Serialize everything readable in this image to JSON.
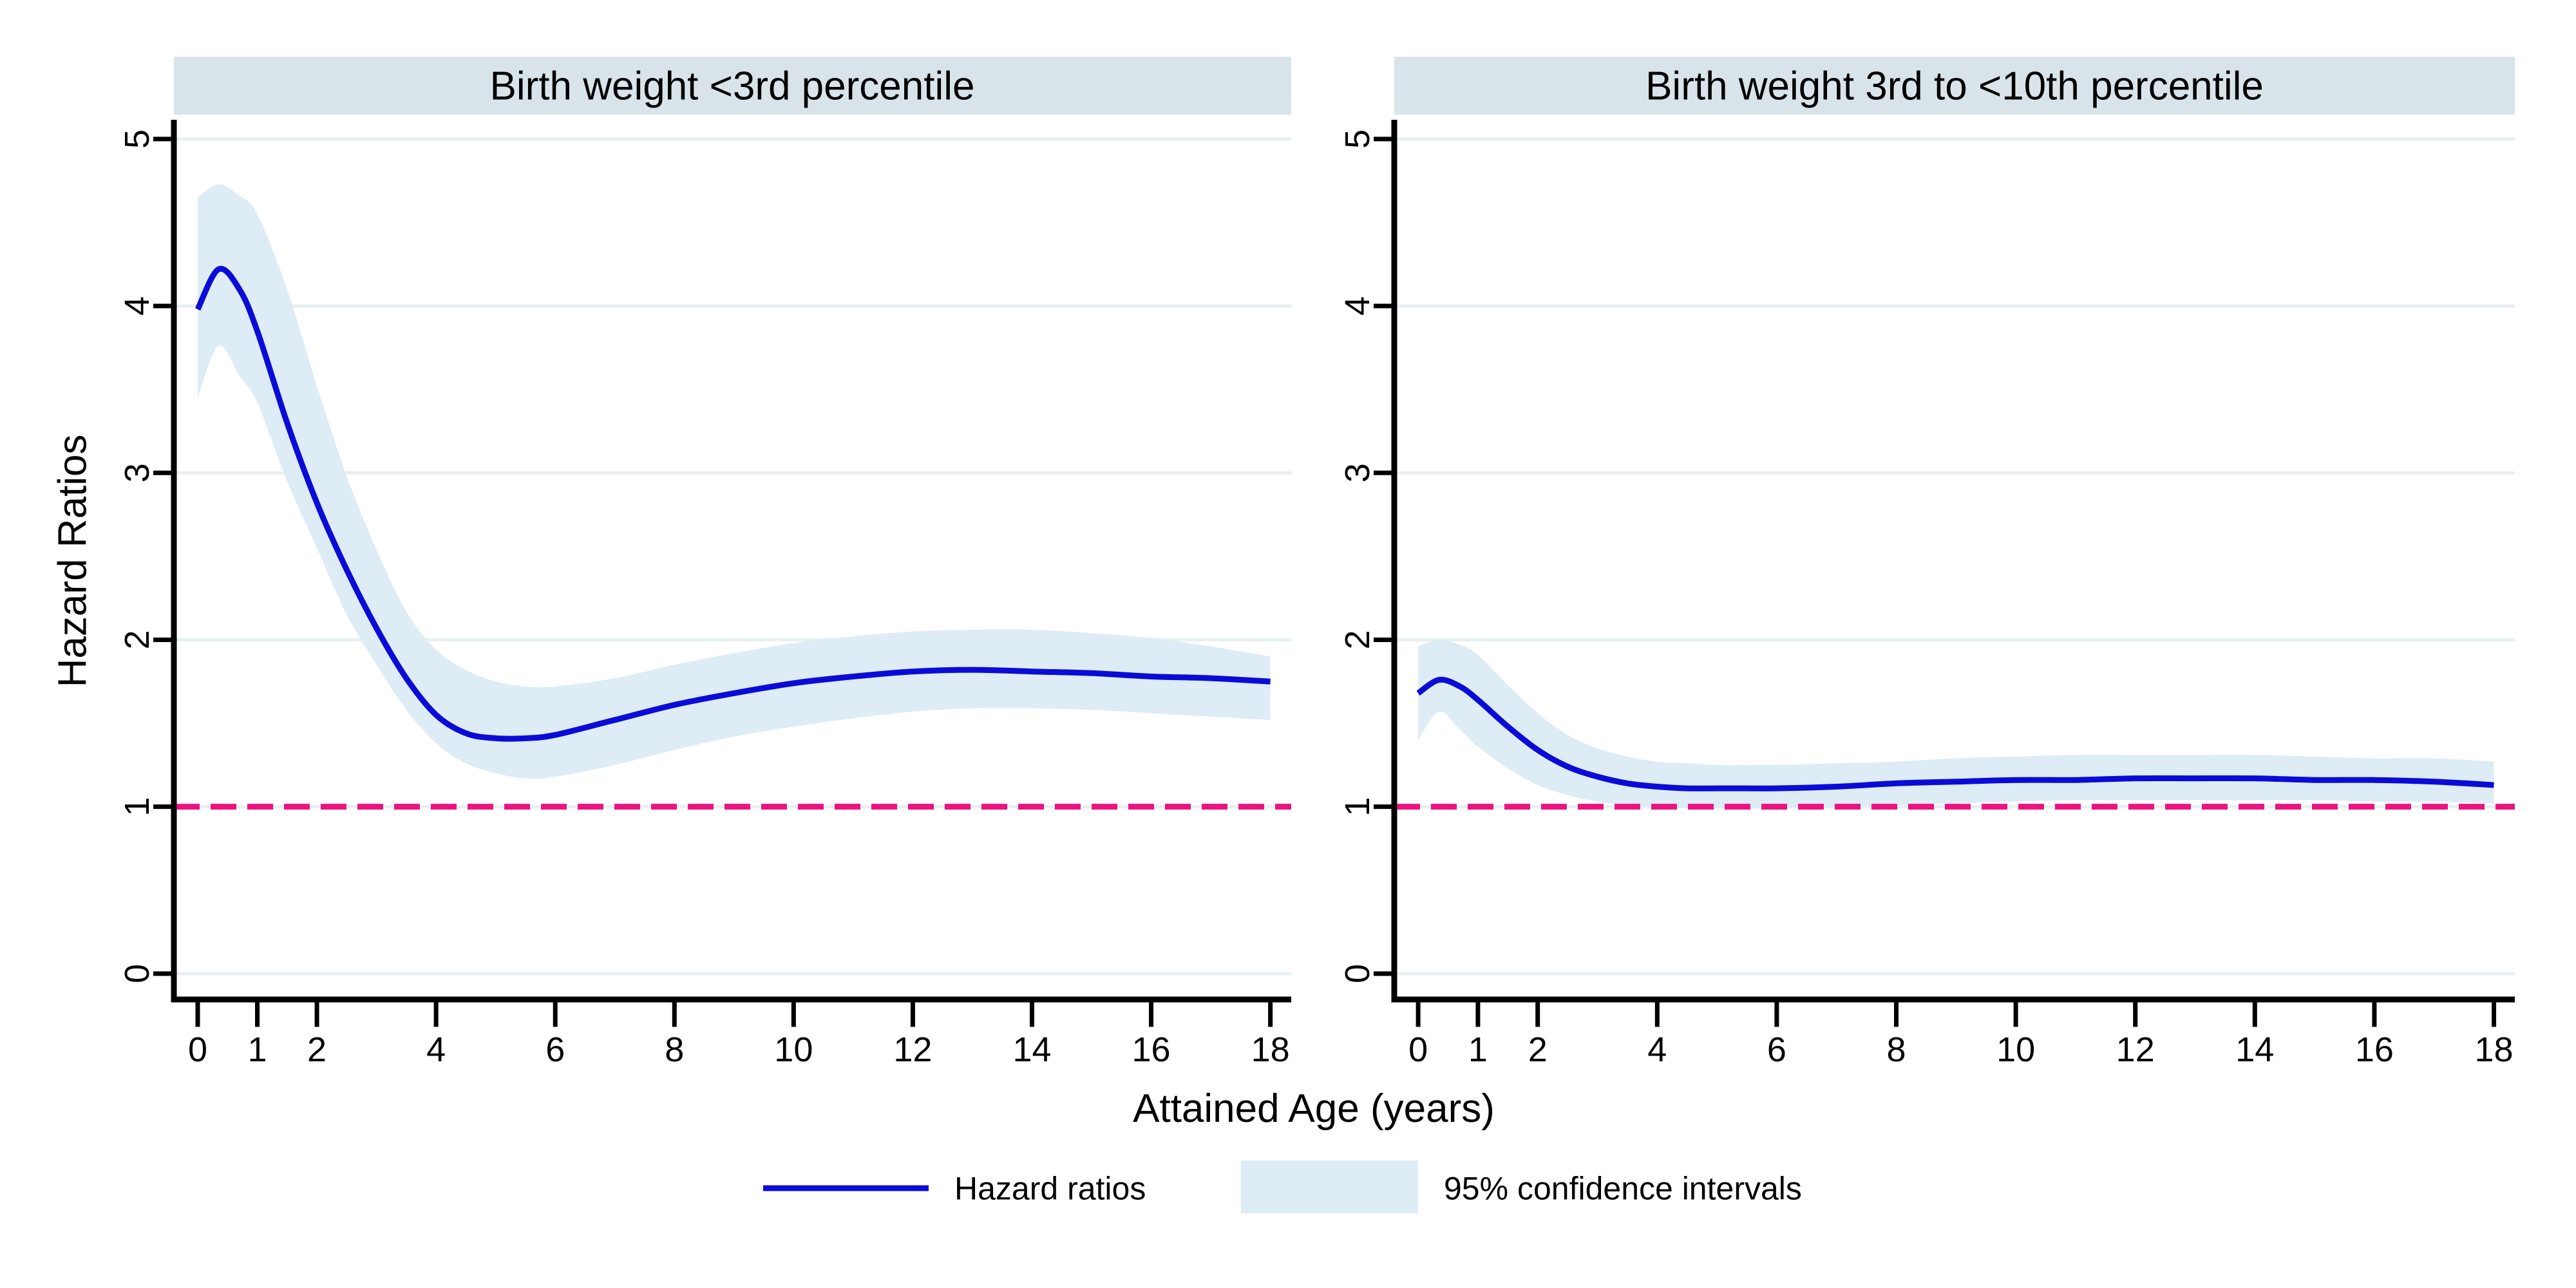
{
  "figure": {
    "background": "#ffffff"
  },
  "colors": {
    "curve": "#0b0bd8",
    "ci_band": "#ddecf5",
    "reference_line": "#ec1380",
    "panel_title_bar": "#d9e4ea",
    "gridline": "#e9f0f2",
    "axis": "#000000",
    "text": "#000000"
  },
  "chart_data": {
    "type": "line",
    "title": "",
    "xlabel": "Attained Age (years)",
    "ylabel": "Hazard Ratios",
    "xticks": [
      0,
      1,
      2,
      4,
      6,
      8,
      10,
      12,
      14,
      16,
      18
    ],
    "yticks": [
      0,
      1,
      2,
      3,
      4,
      5
    ],
    "xlim": [
      -0.4,
      18.35
    ],
    "ylim": [
      -0.155,
      5.1
    ],
    "grid": true,
    "reference_line": {
      "y": 1,
      "style": "dashed",
      "color": "#ec1380"
    },
    "legend": {
      "position": "bottom",
      "entries": [
        {
          "label": "Hazard ratios",
          "type": "line",
          "color": "#0b0bd8"
        },
        {
          "label": "95% confidence intervals",
          "type": "area",
          "color": "#ddecf5"
        }
      ]
    },
    "panels": [
      {
        "title": "Birth weight <3rd percentile",
        "x": [
          0,
          0.35,
          0.7,
          1,
          1.5,
          2,
          2.5,
          3,
          3.5,
          4,
          4.5,
          5,
          5.5,
          6,
          7,
          8,
          9,
          10,
          11,
          12,
          13,
          14,
          15,
          16,
          17,
          18
        ],
        "series": [
          {
            "name": "Hazard ratios",
            "values": [
              3.98,
              4.22,
              4.1,
              3.85,
              3.3,
              2.82,
              2.42,
              2.07,
              1.77,
              1.55,
              1.44,
              1.41,
              1.41,
              1.43,
              1.52,
              1.61,
              1.68,
              1.74,
              1.78,
              1.81,
              1.82,
              1.81,
              1.8,
              1.78,
              1.77,
              1.75
            ]
          },
          {
            "name": "95% CI upper",
            "values": [
              4.65,
              4.73,
              4.66,
              4.55,
              4.1,
              3.52,
              2.98,
              2.54,
              2.17,
              1.94,
              1.82,
              1.75,
              1.72,
              1.72,
              1.77,
              1.85,
              1.92,
              1.98,
              2.02,
              2.05,
              2.06,
              2.06,
              2.04,
              2.01,
              1.96,
              1.9
            ]
          },
          {
            "name": "95% CI lower",
            "values": [
              3.45,
              3.76,
              3.58,
              3.42,
              2.95,
              2.55,
              2.15,
              1.85,
              1.58,
              1.38,
              1.26,
              1.2,
              1.17,
              1.18,
              1.25,
              1.34,
              1.42,
              1.48,
              1.53,
              1.57,
              1.59,
              1.59,
              1.58,
              1.56,
              1.54,
              1.52
            ]
          }
        ]
      },
      {
        "title": "Birth weight 3rd to <10th percentile",
        "x": [
          0,
          0.35,
          0.7,
          1,
          1.5,
          2,
          2.5,
          3,
          3.5,
          4,
          4.5,
          5,
          5.5,
          6,
          7,
          8,
          9,
          10,
          11,
          12,
          13,
          14,
          15,
          16,
          17,
          18
        ],
        "series": [
          {
            "name": "Hazard ratios",
            "values": [
              1.68,
              1.76,
              1.72,
              1.64,
              1.48,
              1.34,
              1.24,
              1.18,
              1.14,
              1.12,
              1.11,
              1.11,
              1.11,
              1.11,
              1.12,
              1.14,
              1.15,
              1.16,
              1.16,
              1.17,
              1.17,
              1.17,
              1.16,
              1.16,
              1.15,
              1.13
            ]
          },
          {
            "name": "95% CI upper",
            "values": [
              1.96,
              2.0,
              1.97,
              1.91,
              1.73,
              1.56,
              1.43,
              1.35,
              1.3,
              1.27,
              1.26,
              1.25,
              1.25,
              1.25,
              1.26,
              1.27,
              1.29,
              1.3,
              1.31,
              1.31,
              1.31,
              1.31,
              1.3,
              1.29,
              1.29,
              1.27
            ]
          },
          {
            "name": "95% CI lower",
            "values": [
              1.4,
              1.57,
              1.46,
              1.36,
              1.23,
              1.13,
              1.07,
              1.03,
              1.01,
              1.0,
              0.99,
              0.99,
              0.99,
              0.99,
              1.0,
              1.01,
              1.02,
              1.03,
              1.04,
              1.04,
              1.04,
              1.04,
              1.04,
              1.03,
              1.03,
              1.02
            ]
          }
        ]
      }
    ]
  }
}
